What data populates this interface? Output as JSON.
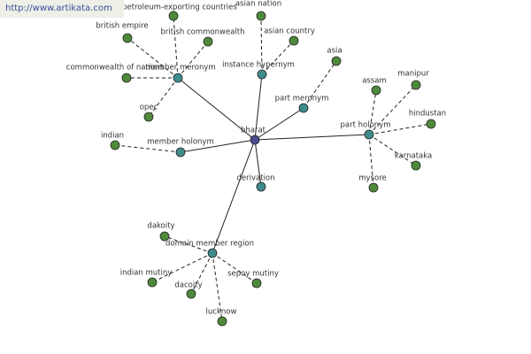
{
  "header": {
    "url": "http://www.artikata.com"
  },
  "nodes": [
    {
      "label": "bharat"
    },
    {
      "label": "member meronym"
    },
    {
      "label": "instance hypernym"
    },
    {
      "label": "part meronym"
    },
    {
      "label": "part holonym"
    },
    {
      "label": "member holonym"
    },
    {
      "label": "derivation"
    },
    {
      "label": "domain member region"
    },
    {
      "label": "british empire"
    },
    {
      "label": "british commonwealth"
    },
    {
      "label": "petroleum-exporting countries"
    },
    {
      "label": "commonwealth of nations"
    },
    {
      "label": "opec"
    },
    {
      "label": "asian nation"
    },
    {
      "label": "asian country"
    },
    {
      "label": "asia"
    },
    {
      "label": "assam"
    },
    {
      "label": "manipur"
    },
    {
      "label": "hindustan"
    },
    {
      "label": "karnataka"
    },
    {
      "label": "mysore"
    },
    {
      "label": "indian"
    },
    {
      "label": "dakoity"
    },
    {
      "label": "indian mutiny"
    },
    {
      "label": "dacoity"
    },
    {
      "label": "sepoy mutiny"
    },
    {
      "label": "lucknow"
    }
  ]
}
